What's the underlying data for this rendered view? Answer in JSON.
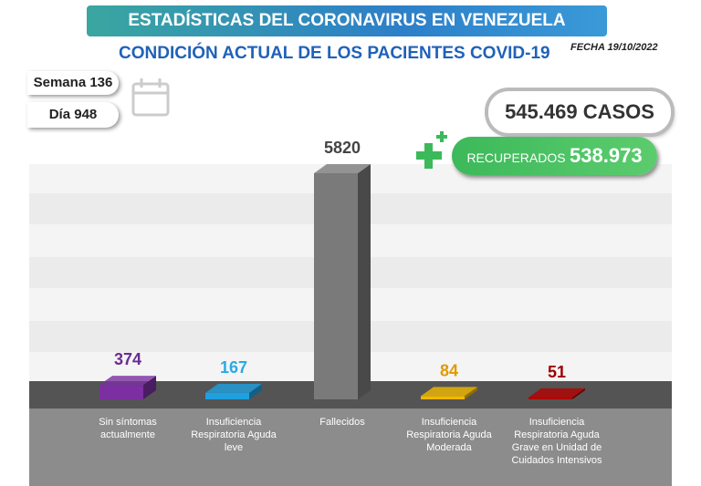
{
  "chart_data": {
    "type": "bar",
    "title": "ESTADÍSTICAS DEL CORONAVIRUS EN VENEZUELA",
    "subtitle": "CONDICIÓN ACTUAL DE LOS PACIENTES COVID-19",
    "date": "FECHA 19/10/2022",
    "week": "Semana 136",
    "day": "Día 948",
    "total_cases": "545.469 CASOS",
    "recovered_label": "RECUPERADOS",
    "recovered_value": "538.973",
    "categories": [
      "Sin síntomas actualmente",
      "Insuficiencia Respiratoria Aguda leve",
      "Fallecidos",
      "Insuficiencia Respiratoria Aguda Moderada",
      "Insuficiencia Respiratoria Aguda Grave en Unidad de Cuidados Intensivos"
    ],
    "values": [
      374,
      167,
      5820,
      84,
      51
    ],
    "colors": [
      "#7b2fa0",
      "#1ea0e0",
      "#7a7a7a",
      "#f0b800",
      "#b30000"
    ],
    "label_colors": [
      "#6a2c91",
      "#29abe2",
      "#444444",
      "#e09a00",
      "#a00000"
    ]
  }
}
